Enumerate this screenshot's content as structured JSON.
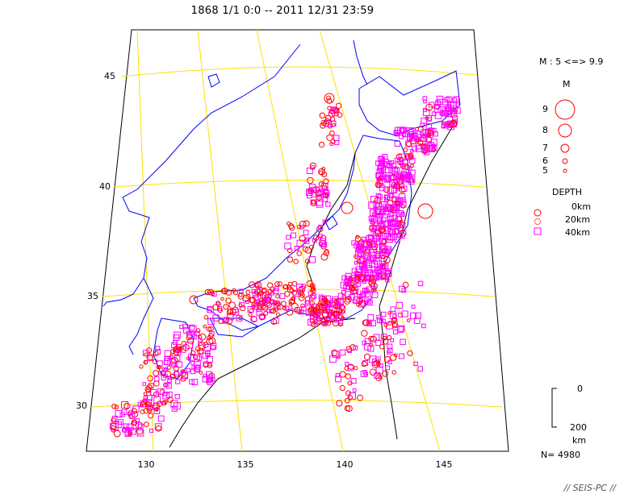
{
  "title": "1868 1/1 0:0 -- 2011 12/31 23:59",
  "map": {
    "lat_labels": [
      "45",
      "40",
      "35",
      "30"
    ],
    "lon_labels": [
      "130",
      "135",
      "140",
      "145"
    ],
    "colors": {
      "grid": "#ffe000",
      "coast": "#0000ff",
      "plate": "#000000",
      "shallow": "#ff0000",
      "deep": "#ff00ff"
    }
  },
  "legend": {
    "magnitude_range": "M : 5 <=> 9.9",
    "magnitude_header": "M",
    "magnitudes": [
      "9",
      "8",
      "7",
      "6",
      "5"
    ],
    "depth_header": "DEPTH",
    "depth_entries": [
      "0km",
      "20km",
      "40km"
    ],
    "depth_scale_top": "0",
    "depth_scale_bottom": "200",
    "depth_scale_unit": "km",
    "count": "N= 4980"
  },
  "footer": "// SEIS-PC //"
}
